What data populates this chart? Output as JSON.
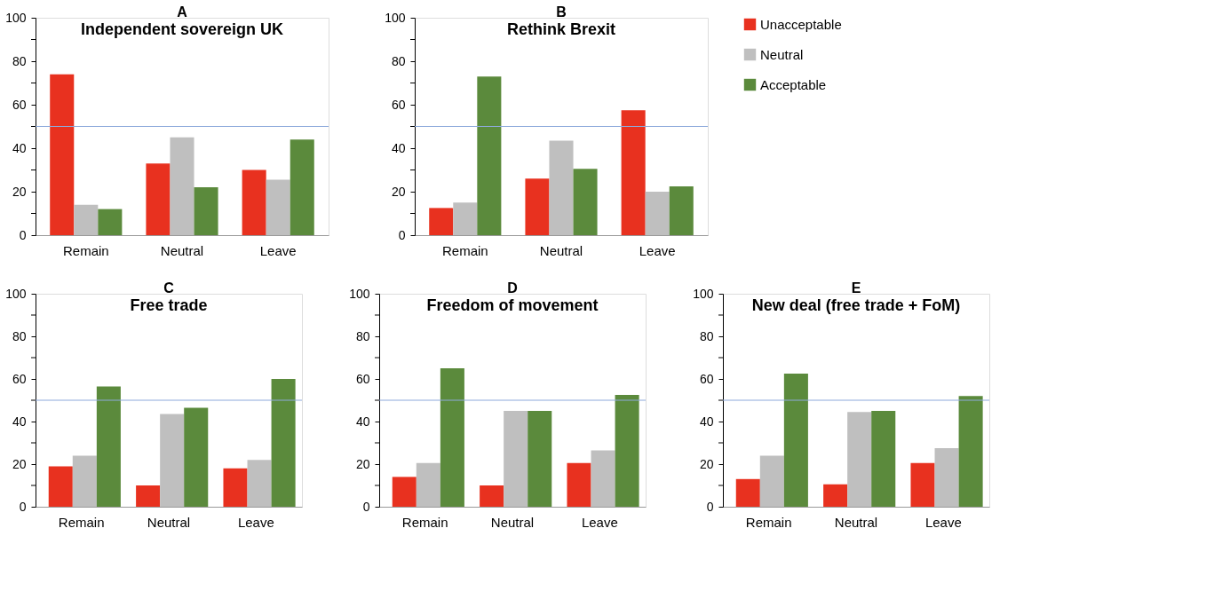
{
  "chart_data": [
    {
      "type": "bar",
      "title": "A",
      "subtitle": "Independent sovereign UK",
      "categories": [
        "Remain",
        "Neutral",
        "Leave"
      ],
      "series": [
        {
          "color": "#e8311f",
          "values": [
            74,
            33,
            30
          ]
        },
        {
          "color": "#bfbfbf",
          "values": [
            14,
            45,
            25.5
          ]
        },
        {
          "color": "#5b8a3c",
          "values": [
            12,
            22,
            44
          ]
        }
      ],
      "ylim": [
        0,
        100
      ],
      "yticks": [
        0,
        {
          "value": 10,
          "label": null
        },
        20,
        {
          "value": 30,
          "label": null
        },
        40,
        {
          "value": 50,
          "label": null
        },
        60,
        {
          "value": 70,
          "label": null
        },
        80,
        {
          "value": 90,
          "label": null
        },
        100
      ],
      "ref_lines": [
        {
          "axis": "y",
          "value": 50,
          "color": "#8eaadb"
        }
      ]
    },
    {
      "type": "bar",
      "title": "B",
      "subtitle": "Rethink Brexit",
      "categories": [
        "Remain",
        "Neutral",
        "Leave"
      ],
      "series": [
        {
          "name": "Unacceptable",
          "color": "#e8311f",
          "values": [
            12.5,
            26,
            57.5
          ]
        },
        {
          "name": "Neutral",
          "color": "#bfbfbf",
          "values": [
            15,
            43.5,
            20
          ]
        },
        {
          "name": "Acceptable",
          "color": "#5b8a3c",
          "values": [
            73,
            30.5,
            22.5
          ]
        }
      ],
      "ylim": [
        0,
        100
      ],
      "yticks": [
        0,
        {
          "value": 10,
          "label": null
        },
        20,
        {
          "value": 30,
          "label": null
        },
        40,
        {
          "value": 50,
          "label": null
        },
        60,
        {
          "value": 70,
          "label": null
        },
        80,
        {
          "value": 90,
          "label": null
        },
        100
      ],
      "ref_lines": [
        {
          "axis": "y",
          "value": 50,
          "color": "#8eaadb"
        }
      ],
      "legend": "right"
    },
    {
      "type": "bar",
      "title": "C",
      "subtitle": "Free trade",
      "categories": [
        "Remain",
        "Neutral",
        "Leave"
      ],
      "series": [
        {
          "color": "#e8311f",
          "values": [
            19,
            10,
            18
          ]
        },
        {
          "color": "#bfbfbf",
          "values": [
            24,
            43.5,
            22
          ]
        },
        {
          "color": "#5b8a3c",
          "values": [
            56.5,
            46.5,
            60
          ]
        }
      ],
      "ylim": [
        0,
        100
      ],
      "yticks": [
        0,
        {
          "value": 10,
          "label": null
        },
        20,
        {
          "value": 30,
          "label": null
        },
        40,
        {
          "value": 50,
          "label": null
        },
        60,
        {
          "value": 70,
          "label": null
        },
        80,
        {
          "value": 90,
          "label": null
        },
        100
      ],
      "ref_lines": [
        {
          "axis": "y",
          "value": 50,
          "color": "#8eaadb"
        }
      ]
    },
    {
      "type": "bar",
      "title": "D",
      "subtitle": "Freedom of movement",
      "categories": [
        "Remain",
        "Neutral",
        "Leave"
      ],
      "series": [
        {
          "color": "#e8311f",
          "values": [
            14,
            10,
            20.5
          ]
        },
        {
          "color": "#bfbfbf",
          "values": [
            20.5,
            45,
            26.5
          ]
        },
        {
          "color": "#5b8a3c",
          "values": [
            65,
            45,
            52.5
          ]
        }
      ],
      "ylim": [
        0,
        100
      ],
      "yticks": [
        0,
        {
          "value": 10,
          "label": null
        },
        20,
        {
          "value": 30,
          "label": null
        },
        40,
        {
          "value": 50,
          "label": null
        },
        60,
        {
          "value": 70,
          "label": null
        },
        80,
        {
          "value": 90,
          "label": null
        },
        100
      ],
      "ref_lines": [
        {
          "axis": "y",
          "value": 50,
          "color": "#8eaadb"
        }
      ]
    },
    {
      "type": "bar",
      "title": "E",
      "subtitle": "New deal (free trade + FoM)",
      "categories": [
        "Remain",
        "Neutral",
        "Leave"
      ],
      "series": [
        {
          "color": "#e8311f",
          "values": [
            13,
            10.5,
            20.5
          ]
        },
        {
          "color": "#bfbfbf",
          "values": [
            24,
            44.5,
            27.5
          ]
        },
        {
          "color": "#5b8a3c",
          "values": [
            62.5,
            45,
            52
          ]
        }
      ],
      "ylim": [
        0,
        100
      ],
      "yticks": [
        0,
        {
          "value": 10,
          "label": null
        },
        20,
        {
          "value": 30,
          "label": null
        },
        40,
        {
          "value": 50,
          "label": null
        },
        60,
        {
          "value": 70,
          "label": null
        },
        80,
        {
          "value": 90,
          "label": null
        },
        100
      ],
      "ref_lines": [
        {
          "axis": "y",
          "value": 50,
          "color": "#8eaadb"
        }
      ]
    }
  ]
}
